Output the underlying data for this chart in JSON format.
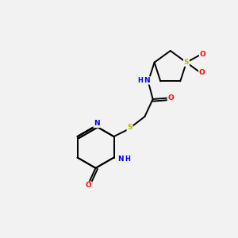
{
  "bg_color": "#f2f2f2",
  "atom_colors": {
    "N": "#0000ff",
    "O": "#ff0000",
    "S": "#b8b800",
    "C": "#000000",
    "H": "#000000"
  },
  "bond_color": "#000000",
  "bond_lw": 1.4,
  "fig_size": [
    3.0,
    3.0
  ],
  "dpi": 100
}
